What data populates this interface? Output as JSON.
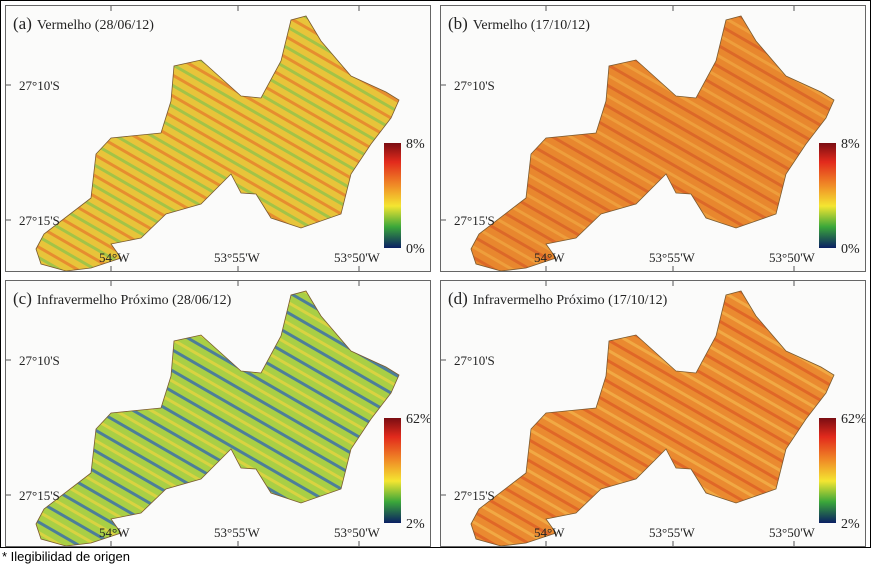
{
  "panels": [
    {
      "label": "(a)",
      "title": "Vermelho (28/06/12)",
      "cb_max": "8%",
      "cb_min": "0%",
      "c1": "#e8c43a",
      "c2": "#e57a2a",
      "c3": "#8cc24a"
    },
    {
      "label": "(b)",
      "title": "Vermelho (17/10/12)",
      "cb_max": "8%",
      "cb_min": "0%",
      "c1": "#e8872e",
      "c2": "#f0a540",
      "c3": "#d85d25"
    },
    {
      "label": "(c)",
      "title": "Infravermelho Próximo (28/06/12)",
      "cb_max": "62%",
      "cb_min": "2%",
      "c1": "#a9cf45",
      "c2": "#2f62b5",
      "c3": "#e9d440"
    },
    {
      "label": "(d)",
      "title": "Infravermelho Próximo (17/10/12)",
      "cb_max": "62%",
      "cb_min": "2%",
      "c1": "#ea8a30",
      "c2": "#f2b24a",
      "c3": "#dc5a24"
    }
  ],
  "axes": {
    "lat1": "27°10'S",
    "lat2": "27°15'S",
    "lon1": "54°W",
    "lon2": "53°55'W",
    "lon3": "53°50'W"
  },
  "footnote": "* Ilegibilidad de origen"
}
